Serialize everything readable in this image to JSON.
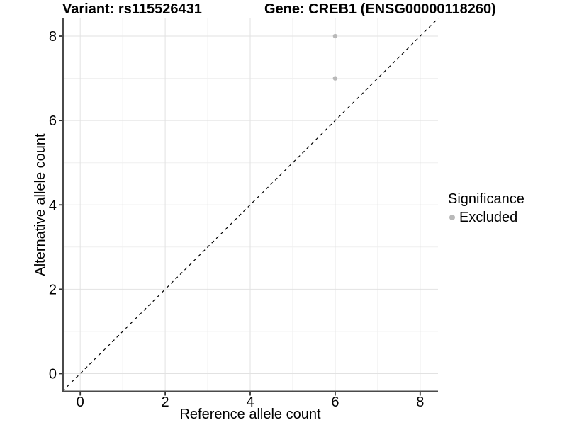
{
  "header": {
    "variant_title": "Variant: rs115526431",
    "gene_title": "Gene: CREB1 (ENSG00000118260)"
  },
  "legend": {
    "title": "Significance",
    "items": [
      {
        "label": "Excluded",
        "color": "#b9b9b9"
      }
    ]
  },
  "chart_data": {
    "type": "scatter",
    "title": "Variant: rs115526431   Gene: CREB1 (ENSG00000118260)",
    "xlabel": "Reference allele count",
    "ylabel": "Alternative allele count",
    "xlim": [
      -0.42,
      8.42
    ],
    "ylim": [
      -0.42,
      8.42
    ],
    "x_ticks": [
      0,
      2,
      4,
      6,
      8
    ],
    "y_ticks": [
      0,
      2,
      4,
      6,
      8
    ],
    "x_minor_ticks": [
      1,
      3,
      5,
      7
    ],
    "y_minor_ticks": [
      1,
      3,
      5,
      7
    ],
    "grid": true,
    "legend_position": "right",
    "series": [
      {
        "name": "Excluded",
        "color": "#b9b9b9",
        "marker": "circle",
        "points": [
          {
            "x": 6,
            "y": 8
          },
          {
            "x": 6,
            "y": 7
          }
        ]
      }
    ],
    "reference_line": {
      "kind": "identity",
      "style": "dashed",
      "color": "#000000"
    }
  },
  "style": {
    "axis_color": "#4a4a4a",
    "tick_color": "#333333",
    "grid_major_color": "#e2e2e2",
    "grid_minor_color": "#efefef",
    "text_color": "#000000",
    "point_color": "#b9b9b9"
  }
}
